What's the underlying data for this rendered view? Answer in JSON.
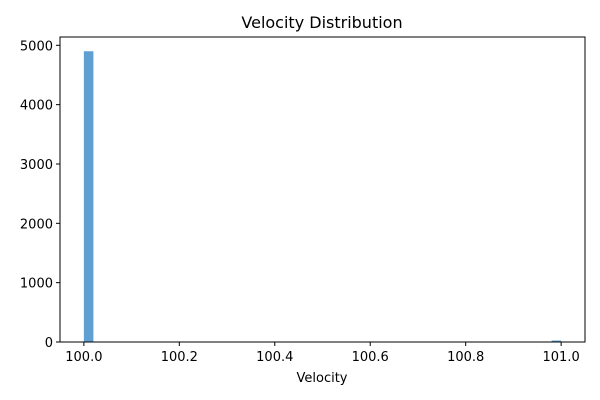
{
  "chart_data": {
    "type": "bar",
    "title": "Velocity Distribution",
    "xlabel": "Velocity",
    "ylabel": "",
    "xlim": [
      99.95,
      101.05
    ],
    "ylim": [
      0,
      5140
    ],
    "xticks": [
      "100.0",
      "100.2",
      "100.4",
      "100.6",
      "100.8",
      "101.0"
    ],
    "yticks": [
      "0",
      "1000",
      "2000",
      "3000",
      "4000",
      "5000"
    ],
    "bin_width": 0.02,
    "bins": [
      {
        "x_start": 100.0,
        "x_end": 100.02,
        "value": 4900
      },
      {
        "x_start": 100.98,
        "x_end": 101.0,
        "value": 25
      }
    ],
    "grid": false,
    "colors": {
      "bar": "#5f9fd2"
    }
  }
}
